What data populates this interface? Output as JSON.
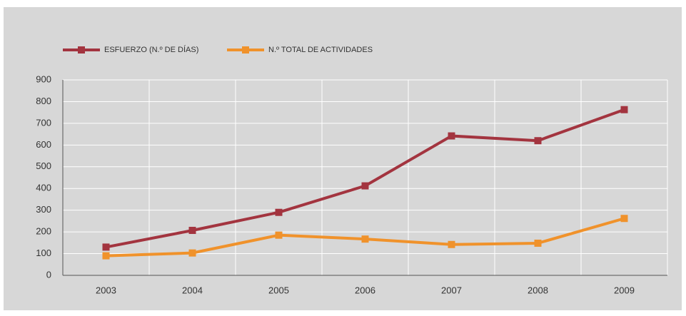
{
  "chart_data": {
    "type": "line",
    "categories": [
      "2003",
      "2004",
      "2005",
      "2006",
      "2007",
      "2008",
      "2009"
    ],
    "series": [
      {
        "name": "ESFUERZO (N.º DE DÍAS)",
        "color": "#a3343f",
        "values": [
          130,
          207,
          290,
          412,
          642,
          620,
          763
        ]
      },
      {
        "name": "N.º TOTAL DE ACTIVIDADES",
        "color": "#f0922b",
        "values": [
          90,
          103,
          185,
          167,
          142,
          148,
          262
        ]
      }
    ],
    "ylim": [
      0,
      900
    ],
    "yticks": [
      0,
      100,
      200,
      300,
      400,
      500,
      600,
      700,
      800,
      900
    ],
    "grid": true
  }
}
